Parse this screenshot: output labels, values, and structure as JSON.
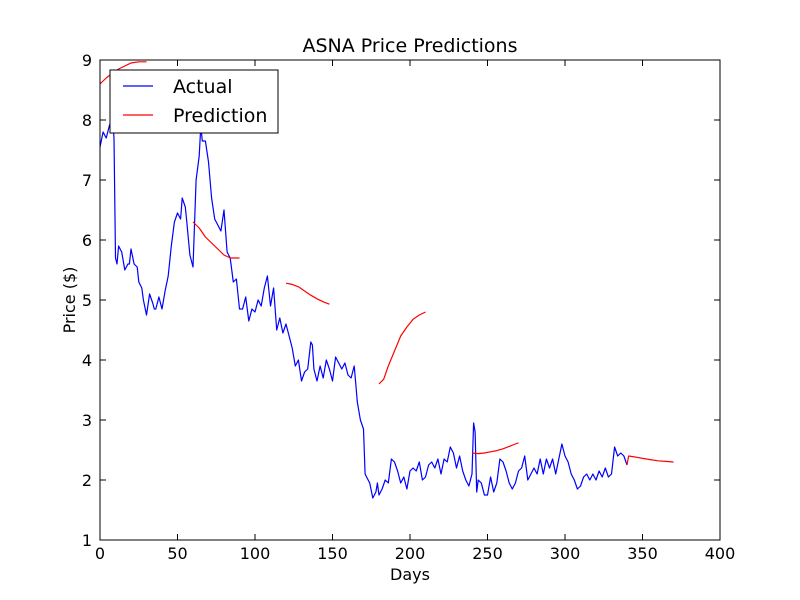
{
  "chart_data": {
    "type": "line",
    "title": "ASNA Price Predictions",
    "xlabel": "Days",
    "ylabel": "Price ($)",
    "xlim": [
      0,
      400
    ],
    "ylim": [
      1,
      9
    ],
    "xticks": [
      0,
      50,
      100,
      150,
      200,
      250,
      300,
      350,
      400
    ],
    "yticks": [
      1,
      2,
      3,
      4,
      5,
      6,
      7,
      8,
      9
    ],
    "grid": false,
    "legend_position": "top-left",
    "series": [
      {
        "name": "Actual",
        "color": "#0000ff",
        "points": [
          [
            0,
            7.55
          ],
          [
            2,
            7.8
          ],
          [
            4,
            7.7
          ],
          [
            6,
            7.9
          ],
          [
            8,
            8.05
          ],
          [
            9,
            7.7
          ],
          [
            10,
            5.7
          ],
          [
            11,
            5.6
          ],
          [
            12,
            5.9
          ],
          [
            14,
            5.8
          ],
          [
            16,
            5.5
          ],
          [
            18,
            5.6
          ],
          [
            19,
            5.6
          ],
          [
            20,
            5.85
          ],
          [
            22,
            5.6
          ],
          [
            24,
            5.55
          ],
          [
            25,
            5.3
          ],
          [
            27,
            5.2
          ],
          [
            28,
            5.0
          ],
          [
            30,
            4.75
          ],
          [
            32,
            5.1
          ],
          [
            34,
            4.95
          ],
          [
            35,
            4.85
          ],
          [
            36,
            4.85
          ],
          [
            38,
            5.05
          ],
          [
            40,
            4.85
          ],
          [
            42,
            5.15
          ],
          [
            44,
            5.4
          ],
          [
            46,
            5.9
          ],
          [
            48,
            6.3
          ],
          [
            50,
            6.45
          ],
          [
            52,
            6.35
          ],
          [
            53,
            6.7
          ],
          [
            55,
            6.55
          ],
          [
            56,
            6.3
          ],
          [
            58,
            5.75
          ],
          [
            60,
            5.55
          ],
          [
            62,
            7.0
          ],
          [
            64,
            7.4
          ],
          [
            65,
            7.9
          ],
          [
            66,
            7.65
          ],
          [
            68,
            7.65
          ],
          [
            70,
            7.3
          ],
          [
            72,
            6.7
          ],
          [
            74,
            6.35
          ],
          [
            76,
            6.25
          ],
          [
            78,
            6.15
          ],
          [
            80,
            6.5
          ],
          [
            82,
            5.8
          ],
          [
            84,
            5.7
          ],
          [
            86,
            5.3
          ],
          [
            88,
            5.35
          ],
          [
            90,
            4.85
          ],
          [
            92,
            4.85
          ],
          [
            94,
            5.05
          ],
          [
            96,
            4.65
          ],
          [
            98,
            4.85
          ],
          [
            100,
            4.8
          ],
          [
            102,
            5.0
          ],
          [
            104,
            4.9
          ],
          [
            106,
            5.2
          ],
          [
            108,
            5.4
          ],
          [
            110,
            4.9
          ],
          [
            112,
            5.2
          ],
          [
            114,
            4.5
          ],
          [
            116,
            4.7
          ],
          [
            118,
            4.45
          ],
          [
            120,
            4.6
          ],
          [
            122,
            4.4
          ],
          [
            124,
            4.2
          ],
          [
            126,
            3.9
          ],
          [
            128,
            4.0
          ],
          [
            130,
            3.65
          ],
          [
            132,
            3.8
          ],
          [
            134,
            3.85
          ],
          [
            136,
            4.3
          ],
          [
            137,
            4.25
          ],
          [
            138,
            3.85
          ],
          [
            140,
            3.65
          ],
          [
            142,
            3.9
          ],
          [
            144,
            3.7
          ],
          [
            146,
            4.0
          ],
          [
            148,
            3.85
          ],
          [
            150,
            3.65
          ],
          [
            152,
            4.05
          ],
          [
            154,
            3.95
          ],
          [
            156,
            3.85
          ],
          [
            158,
            3.95
          ],
          [
            160,
            3.75
          ],
          [
            162,
            3.7
          ],
          [
            164,
            3.9
          ],
          [
            165,
            3.6
          ],
          [
            166,
            3.3
          ],
          [
            168,
            3.0
          ],
          [
            170,
            2.85
          ],
          [
            171,
            2.1
          ],
          [
            172,
            2.05
          ],
          [
            174,
            1.95
          ],
          [
            176,
            1.7
          ],
          [
            178,
            1.8
          ],
          [
            179,
            1.95
          ],
          [
            180,
            1.75
          ],
          [
            182,
            1.85
          ],
          [
            184,
            2.0
          ],
          [
            186,
            1.95
          ],
          [
            188,
            2.35
          ],
          [
            190,
            2.3
          ],
          [
            192,
            2.15
          ],
          [
            194,
            1.95
          ],
          [
            196,
            2.05
          ],
          [
            198,
            1.85
          ],
          [
            200,
            2.15
          ],
          [
            202,
            2.2
          ],
          [
            204,
            2.15
          ],
          [
            206,
            2.3
          ],
          [
            208,
            2.0
          ],
          [
            210,
            2.05
          ],
          [
            212,
            2.25
          ],
          [
            214,
            2.3
          ],
          [
            216,
            2.2
          ],
          [
            218,
            2.35
          ],
          [
            220,
            2.1
          ],
          [
            222,
            2.35
          ],
          [
            224,
            2.3
          ],
          [
            226,
            2.55
          ],
          [
            228,
            2.45
          ],
          [
            230,
            2.2
          ],
          [
            232,
            2.4
          ],
          [
            234,
            2.15
          ],
          [
            236,
            2.0
          ],
          [
            238,
            1.9
          ],
          [
            240,
            2.1
          ],
          [
            241,
            2.95
          ],
          [
            242,
            2.8
          ],
          [
            243,
            1.8
          ],
          [
            244,
            2.0
          ],
          [
            246,
            1.95
          ],
          [
            248,
            1.75
          ],
          [
            250,
            1.75
          ],
          [
            252,
            2.05
          ],
          [
            254,
            1.8
          ],
          [
            256,
            1.95
          ],
          [
            258,
            2.35
          ],
          [
            260,
            2.3
          ],
          [
            262,
            2.15
          ],
          [
            264,
            1.95
          ],
          [
            266,
            1.85
          ],
          [
            268,
            1.95
          ],
          [
            270,
            2.15
          ],
          [
            272,
            2.2
          ],
          [
            274,
            2.4
          ],
          [
            276,
            2.0
          ],
          [
            278,
            2.1
          ],
          [
            280,
            2.2
          ],
          [
            282,
            2.1
          ],
          [
            284,
            2.35
          ],
          [
            286,
            2.1
          ],
          [
            288,
            2.35
          ],
          [
            290,
            2.2
          ],
          [
            292,
            2.35
          ],
          [
            294,
            2.1
          ],
          [
            296,
            2.35
          ],
          [
            298,
            2.6
          ],
          [
            300,
            2.4
          ],
          [
            302,
            2.3
          ],
          [
            304,
            2.1
          ],
          [
            306,
            2.0
          ],
          [
            308,
            1.85
          ],
          [
            310,
            1.9
          ],
          [
            312,
            2.05
          ],
          [
            314,
            2.1
          ],
          [
            316,
            2.0
          ],
          [
            318,
            2.1
          ],
          [
            320,
            2.0
          ],
          [
            322,
            2.15
          ],
          [
            324,
            2.05
          ],
          [
            326,
            2.2
          ],
          [
            328,
            2.05
          ],
          [
            330,
            2.1
          ],
          [
            332,
            2.55
          ],
          [
            334,
            2.4
          ],
          [
            336,
            2.45
          ],
          [
            338,
            2.4
          ],
          [
            340,
            2.25
          ]
        ]
      },
      {
        "name": "Prediction",
        "color": "#ff0000",
        "segments": [
          [
            [
              0,
              8.6
            ],
            [
              4,
              8.7
            ],
            [
              8,
              8.78
            ],
            [
              12,
              8.85
            ],
            [
              16,
              8.9
            ],
            [
              20,
              8.95
            ],
            [
              25,
              8.97
            ],
            [
              30,
              8.97
            ]
          ],
          [
            [
              60,
              6.3
            ],
            [
              64,
              6.2
            ],
            [
              68,
              6.05
            ],
            [
              72,
              5.95
            ],
            [
              76,
              5.85
            ],
            [
              80,
              5.75
            ],
            [
              84,
              5.7
            ],
            [
              88,
              5.7
            ],
            [
              90,
              5.7
            ]
          ],
          [
            [
              120,
              5.28
            ],
            [
              124,
              5.26
            ],
            [
              128,
              5.22
            ],
            [
              132,
              5.15
            ],
            [
              136,
              5.08
            ],
            [
              140,
              5.02
            ],
            [
              144,
              4.97
            ],
            [
              148,
              4.93
            ]
          ],
          [
            [
              180,
              3.6
            ],
            [
              183,
              3.68
            ],
            [
              186,
              3.9
            ],
            [
              190,
              4.15
            ],
            [
              194,
              4.4
            ],
            [
              198,
              4.55
            ],
            [
              202,
              4.68
            ],
            [
              206,
              4.75
            ],
            [
              210,
              4.8
            ]
          ],
          [
            [
              240,
              2.45
            ],
            [
              244,
              2.44
            ],
            [
              248,
              2.45
            ],
            [
              252,
              2.47
            ],
            [
              256,
              2.49
            ],
            [
              260,
              2.52
            ],
            [
              264,
              2.56
            ],
            [
              268,
              2.6
            ],
            [
              270,
              2.62
            ]
          ],
          [
            [
              340,
              2.25
            ],
            [
              341,
              2.4
            ],
            [
              346,
              2.38
            ],
            [
              350,
              2.36
            ],
            [
              355,
              2.34
            ],
            [
              360,
              2.32
            ],
            [
              365,
              2.31
            ],
            [
              370,
              2.3
            ]
          ]
        ]
      }
    ]
  }
}
